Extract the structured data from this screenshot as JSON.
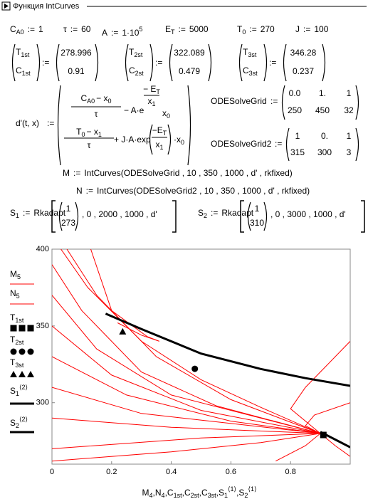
{
  "title": "Функция IntCurves",
  "assign": ":=",
  "params": [
    {
      "name": "C",
      "sub": "A0",
      "value": 1
    },
    {
      "name": "τ",
      "value": 60
    },
    {
      "name": "A",
      "value": "1·10",
      "value_sup": "5"
    },
    {
      "name": "E",
      "sub": "T",
      "value": 5000
    },
    {
      "name": "T",
      "sub": "0",
      "value": 270
    },
    {
      "name": "J",
      "value": 100
    }
  ],
  "vectors": [
    {
      "names": [
        {
          "name": "T",
          "sub": "1st"
        },
        {
          "name": "C",
          "sub": "1st"
        }
      ],
      "values": [
        278.996,
        0.91
      ]
    },
    {
      "names": [
        {
          "name": "T",
          "sub": "2st"
        },
        {
          "name": "C",
          "sub": "2st"
        }
      ],
      "values": [
        322.089,
        0.479
      ]
    },
    {
      "names": [
        {
          "name": "T",
          "sub": "3st"
        },
        {
          "name": "C",
          "sub": "3st"
        }
      ],
      "values": [
        346.28,
        0.237
      ]
    }
  ],
  "ode": {
    "lhs": "d'(t, x)",
    "top": {
      "num": [
        {
          "name": "C",
          "sub": "A0"
        },
        {
          "name": "− x",
          "sub": "0"
        }
      ],
      "den": "τ",
      "op": "− A·e",
      "exp_num": {
        "name": "− E",
        "sub": "T"
      },
      "exp_den": {
        "name": "x",
        "sub": "1"
      },
      "tail": {
        "name": "x",
        "sub": "0"
      }
    },
    "bottom": {
      "num": [
        {
          "name": "T",
          "sub": "0"
        },
        {
          "name": "− x",
          "sub": "1"
        }
      ],
      "den": "τ",
      "op": "+ J·A·exp",
      "arg_num": {
        "name": "−E",
        "sub": "T"
      },
      "arg_den": {
        "name": "x",
        "sub": "1"
      },
      "tail": {
        "name": "·x",
        "sub": "0"
      }
    }
  },
  "grids": [
    {
      "name": "ODESolveGrid",
      "rows": [
        [
          "0.0",
          "1.",
          1
        ],
        [
          250,
          450,
          32
        ]
      ]
    },
    {
      "name": "ODESolveGrid2",
      "rows": [
        [
          1,
          "0.",
          1
        ],
        [
          315,
          300,
          3
        ]
      ]
    }
  ],
  "curve_calls": [
    {
      "lhs": "M",
      "rhs": "IntCurves(ODESolveGrid , 10 , 350 , 1000 , d' , rkfixed)"
    },
    {
      "lhs": "N",
      "rhs": "IntCurves(ODESolveGrid2 , 10 , 350 , 1000 , d' , rkfixed)"
    }
  ],
  "rkadapt": [
    {
      "name": "S",
      "sub": "1",
      "fn": "Rkadapt",
      "init": [
        1,
        273
      ],
      "args": ", 0 , 2000 , 1000 , d'"
    },
    {
      "name": "S",
      "sub": "2",
      "fn": "Rkadapt",
      "init": [
        1,
        310
      ],
      "args": ", 0 , 3000 , 1000 , d'"
    }
  ],
  "chart_data": {
    "type": "line",
    "x_label": [
      {
        "name": "M",
        "sub": "4"
      },
      {
        "name": "N",
        "sub": "4"
      },
      {
        "name": "C",
        "sub": "1st"
      },
      {
        "name": "C",
        "sub": "2st"
      },
      {
        "name": "C",
        "sub": "3st"
      },
      {
        "name": "S",
        "sub": "1",
        "sup": "⟨1⟩"
      },
      {
        "name": "S",
        "sub": "2",
        "sup": "⟨1⟩"
      }
    ],
    "separator": ",",
    "xlim": [
      0,
      1
    ],
    "ylim": [
      260,
      400
    ],
    "xticks": [
      0,
      0.2,
      0.4,
      0.6,
      0.8
    ],
    "yticks": [
      300,
      350,
      400
    ],
    "series": [
      {
        "name": "M",
        "sub": "5",
        "color": "#ff0000",
        "curves": [
          {
            "x": [
              0.03,
              0.12,
              0.3,
              0.5,
              0.7,
              0.9
            ],
            "values": [
              400,
              375,
              340,
              315,
              297,
              280
            ]
          },
          {
            "x": [
              0.05,
              0.15,
              0.35,
              0.6,
              0.9
            ],
            "values": [
              400,
              370,
              330,
              302,
              280
            ]
          },
          {
            "x": [
              0,
              0.1,
              0.3,
              0.55,
              0.9
            ],
            "values": [
              390,
              360,
              320,
              298,
              280
            ]
          },
          {
            "x": [
              0,
              0.15,
              0.4,
              0.9
            ],
            "values": [
              370,
              335,
              305,
              280
            ]
          },
          {
            "x": [
              0,
              0.2,
              0.5,
              0.9
            ],
            "values": [
              350,
              318,
              295,
              280
            ]
          },
          {
            "x": [
              0,
              0.25,
              0.6,
              0.9
            ],
            "values": [
              330,
              305,
              288,
              280
            ]
          },
          {
            "x": [
              0,
              0.3,
              0.9
            ],
            "values": [
              310,
              293,
              280
            ]
          },
          {
            "x": [
              0,
              0.4,
              0.9
            ],
            "values": [
              290,
              284,
              280
            ]
          },
          {
            "x": [
              0,
              0.5,
              0.9
            ],
            "values": [
              270,
              277,
              280
            ]
          },
          {
            "x": [
              0,
              0.4,
              0.7,
              0.9
            ],
            "values": [
              262,
              268,
              274,
              280
            ]
          }
        ]
      },
      {
        "name": "N",
        "sub": "5",
        "color": "#ff0000",
        "curves": [
          {
            "x": [
              0.13,
              0.2,
              0.32,
              0.36,
              0.3,
              0.22
            ],
            "values": [
              400,
              360,
              343,
              340,
              344,
              352
            ]
          },
          {
            "x": [
              1,
              0.85,
              0.8,
              0.9
            ],
            "values": [
              340,
              310,
              296,
              280
            ]
          },
          {
            "x": [
              1,
              0.88,
              0.85,
              0.9
            ],
            "values": [
              300,
              292,
              285,
              280
            ]
          },
          {
            "x": [
              1,
              0.95,
              0.9
            ],
            "values": [
              265,
              272,
              280
            ]
          },
          {
            "x": [
              0.75,
              0.85,
              0.9
            ],
            "values": [
              262,
              272,
              280
            ]
          }
        ]
      },
      {
        "name": "T",
        "sub": "1st",
        "color": "#000000",
        "marker": "square",
        "x": [
          0.91
        ],
        "values": [
          278.996
        ]
      },
      {
        "name": "T",
        "sub": "2st",
        "color": "#000000",
        "marker": "circle",
        "x": [
          0.479
        ],
        "values": [
          322.089
        ]
      },
      {
        "name": "T",
        "sub": "3st",
        "color": "#000000",
        "marker": "triangle",
        "x": [
          0.237
        ],
        "values": [
          346.28
        ]
      },
      {
        "name": "S",
        "sub": "1",
        "sup": "⟨2⟩",
        "color": "#000000",
        "x": [
          0.9,
          0.95,
          1
        ],
        "values": [
          281,
          276,
          271
        ]
      },
      {
        "name": "S",
        "sub": "2",
        "sup": "⟨2⟩",
        "color": "#000000",
        "x": [
          0.18,
          0.3,
          0.5,
          0.7,
          0.85,
          1
        ],
        "values": [
          358,
          348,
          332,
          322,
          316,
          311
        ]
      }
    ]
  }
}
